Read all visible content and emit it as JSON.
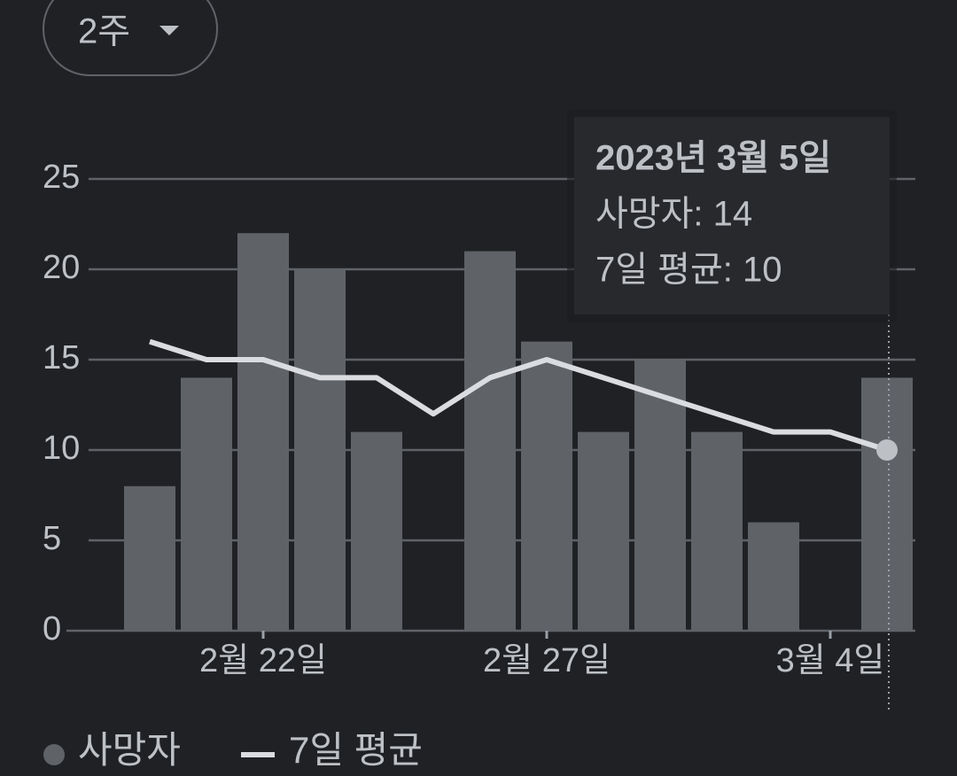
{
  "range_selector": "2주",
  "chart_data": {
    "type": "bar",
    "categories": [
      null,
      null,
      "2월 22일",
      null,
      null,
      null,
      null,
      "2월 27일",
      null,
      null,
      null,
      null,
      "3월 4일",
      null
    ],
    "series": [
      {
        "name": "사망자",
        "type": "bar",
        "color": "#5f6368",
        "values": [
          8,
          14,
          22,
          20,
          11,
          0,
          21,
          16,
          11,
          15,
          11,
          6,
          0,
          14
        ]
      },
      {
        "name": "7일 평균",
        "type": "line",
        "color": "#dadce0",
        "values": [
          16,
          15,
          15,
          14,
          14,
          12,
          14,
          15,
          14,
          13,
          12,
          11,
          11,
          10
        ]
      }
    ],
    "ylim": [
      0,
      25
    ],
    "yticks": [
      0,
      5,
      10,
      15,
      20,
      25
    ],
    "grid": true,
    "legend": "bottom-left",
    "tooltip": {
      "title": "2023년 3월 5일",
      "lines": [
        "사망자: 14",
        "7일 평균: 10"
      ]
    }
  }
}
